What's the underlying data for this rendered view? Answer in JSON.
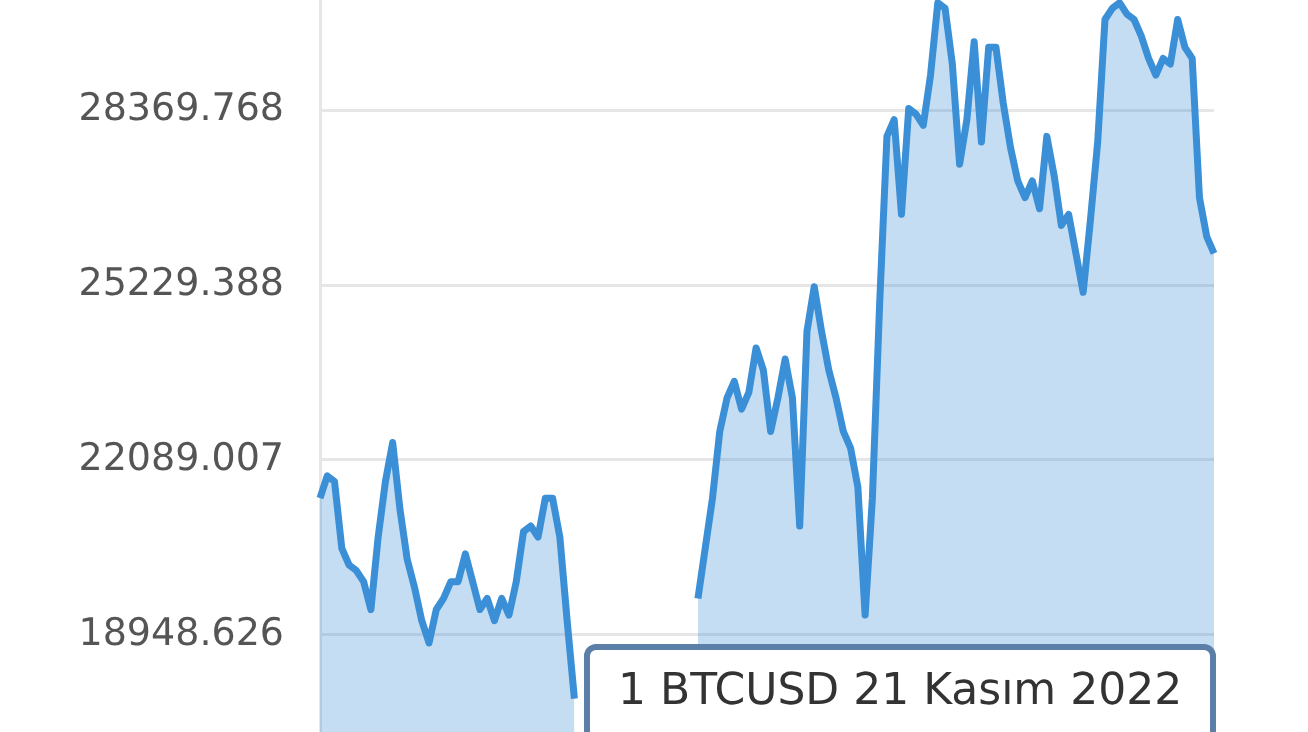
{
  "chart_data": {
    "type": "area",
    "categories": [
      null,
      null,
      null,
      null,
      null,
      null,
      null,
      null,
      null,
      null,
      null,
      null,
      null,
      null,
      null,
      null,
      null,
      null,
      null,
      null,
      null,
      null,
      null,
      null,
      null,
      null,
      null,
      null,
      null,
      null,
      null,
      null,
      null,
      null,
      null,
      null,
      null,
      null,
      null,
      null,
      null,
      null,
      null,
      null,
      null,
      null,
      null,
      null,
      null,
      null,
      null,
      null,
      null,
      null,
      null,
      null,
      null,
      null,
      null,
      null,
      null,
      null,
      null,
      null,
      null,
      null,
      null,
      null,
      null,
      null,
      null,
      null,
      null,
      null,
      null,
      null,
      null,
      null,
      null,
      null,
      null,
      null,
      null,
      null,
      null,
      null,
      null,
      null,
      null,
      null,
      null,
      null,
      null,
      null,
      null,
      null,
      null,
      null,
      null,
      null,
      null,
      null,
      null,
      null,
      null,
      null,
      null,
      null,
      null,
      null,
      null,
      null,
      null,
      null,
      null,
      null,
      null,
      null,
      null,
      null,
      null,
      null,
      null,
      null
    ],
    "series": [
      {
        "color": "#3a8fd6",
        "values": [
          21400,
          21800,
          21700,
          20500,
          20200,
          20100,
          19900,
          19400,
          20700,
          21700,
          22400,
          21200,
          20300,
          19800,
          19200,
          18800,
          19400,
          19600,
          19900,
          19900,
          20400,
          19900,
          19400,
          19600,
          19200,
          19600,
          19300,
          19900,
          20800,
          20900,
          20700,
          21400,
          21400,
          20700,
          19200,
          17800,
          null,
          null,
          null,
          null,
          null,
          null,
          null,
          null,
          null,
          null,
          null,
          null,
          null,
          null,
          null,
          null,
          null,
          null,
          null,
          null,
          null,
          null,
          null,
          null,
          null,
          null,
          null,
          null,
          null,
          null,
          null,
          null,
          null,
          null,
          null,
          null,
          null,
          null,
          null,
          null,
          null,
          null,
          null,
          null,
          null,
          null,
          null,
          null,
          null,
          null,
          null,
          null,
          null,
          null,
          null,
          null,
          null,
          null,
          null,
          null,
          null,
          null,
          null,
          null,
          null,
          null,
          null,
          null,
          null,
          null,
          null,
          null,
          null,
          null,
          null,
          null,
          null,
          null,
          null,
          null,
          null,
          null,
          null,
          null,
          null,
          null,
          null,
          null
        ]
      },
      {
        "color": "#3a8fd6",
        "values": [
          null,
          null,
          null,
          null,
          null,
          null,
          null,
          null,
          null,
          null,
          null,
          null,
          null,
          null,
          null,
          null,
          null,
          null,
          null,
          null,
          null,
          null,
          null,
          null,
          null,
          null,
          null,
          null,
          null,
          null,
          null,
          null,
          null,
          null,
          null,
          null,
          null,
          null,
          null,
          null,
          null,
          null,
          null,
          null,
          null,
          null,
          null,
          null,
          null,
          null,
          null,
          null,
          19600,
          20500,
          21400,
          22600,
          23200,
          23500,
          23000,
          23300,
          24100,
          23700,
          22600,
          23200,
          23900,
          23200,
          20900,
          24400,
          25200,
          24400,
          23700,
          23200,
          22600,
          22300,
          21600,
          19300,
          21400,
          24900,
          27900,
          28200,
          26500,
          28400,
          28300,
          28100,
          29000,
          30300,
          30200,
          29200,
          27400,
          28200,
          29600,
          27800,
          29500,
          29500,
          28500,
          27700,
          27100,
          26800,
          27100,
          26600,
          27900,
          27200,
          26300,
          26500,
          25800,
          25100,
          26400,
          27800,
          30000,
          30200,
          30300,
          30100,
          30000,
          29700,
          29300,
          29000,
          29300,
          29200,
          30000,
          29500,
          29300,
          26800,
          26100,
          25800
        ]
      }
    ],
    "ylim": [
      17200,
      30350
    ],
    "yticks": [
      18948.626,
      22089.007,
      25229.388,
      28369.768
    ],
    "grid": "y",
    "tick_labels": "y",
    "annotations": [
      "1 BTCUSD 21 Kasım 2022"
    ]
  }
}
